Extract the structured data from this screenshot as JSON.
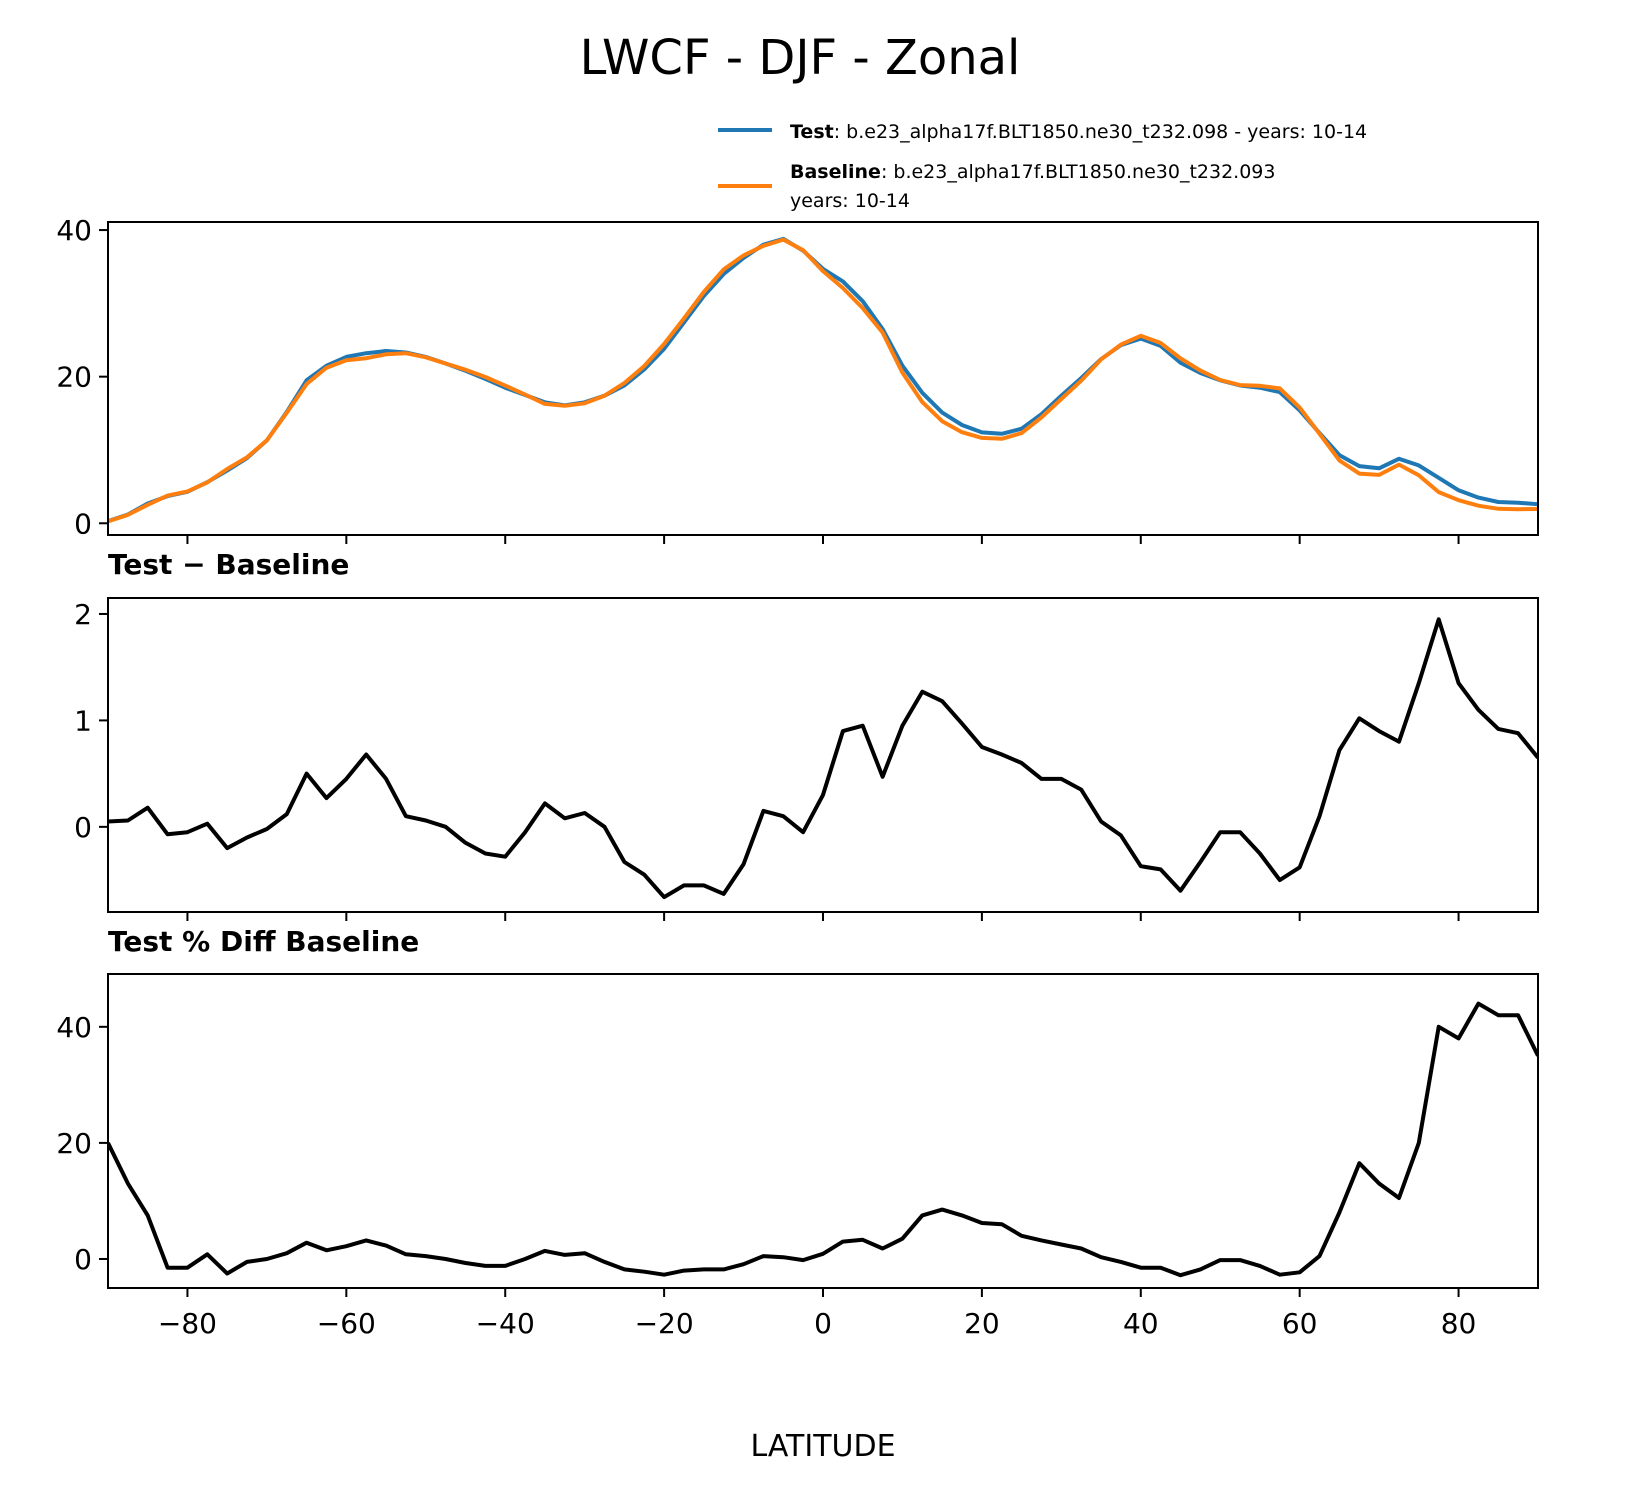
{
  "chart_data": [
    {
      "type": "line",
      "title": "LWCF - DJF - Zonal",
      "xlabel": "LATITUDE",
      "xlim": [
        -90,
        90
      ],
      "ylim": [
        -1.6,
        41.1
      ],
      "xticks": [
        "−80",
        "−60",
        "−40",
        "−20",
        "0",
        "20",
        "40",
        "60",
        "80"
      ],
      "yticks": [
        "0",
        "20",
        "40"
      ],
      "legend": {
        "placement": "top-right",
        "entries": [
          {
            "name": "Test",
            "text": ": b.e23_alpha17f.BLT1850.ne30_t232.098 - years: 10-14",
            "text2": ""
          },
          {
            "name": "Baseline",
            "text": ": b.e23_alpha17f.BLT1850.ne30_t232.093",
            "text2": "years: 10-14"
          }
        ]
      },
      "x": [
        -90,
        -87.5,
        -85,
        -82.5,
        -80,
        -77.5,
        -75,
        -72.5,
        -70,
        -67.5,
        -65,
        -62.5,
        -60,
        -57.5,
        -55,
        -52.5,
        -50,
        -47.5,
        -45,
        -42.5,
        -40,
        -37.5,
        -35,
        -32.5,
        -30,
        -27.5,
        -25,
        -22.5,
        -20,
        -17.5,
        -15,
        -12.5,
        -10,
        -7.5,
        -5,
        -2.5,
        0,
        2.5,
        5,
        7.5,
        10,
        12.5,
        15,
        17.5,
        20,
        22.5,
        25,
        27.5,
        30,
        32.5,
        35,
        37.5,
        40,
        42.5,
        45,
        47.5,
        50,
        52.5,
        55,
        57.5,
        60,
        62.5,
        65,
        67.5,
        70,
        72.5,
        75,
        77.5,
        80,
        82.5,
        85,
        87.5,
        90
      ],
      "series": [
        {
          "name": "Test",
          "color": "#1f77b4",
          "values": [
            0.3,
            1.2,
            2.7,
            3.7,
            4.3,
            5.6,
            7.2,
            8.9,
            11.3,
            15.2,
            19.5,
            21.5,
            22.7,
            23.2,
            23.5,
            23.3,
            22.7,
            21.8,
            20.8,
            19.7,
            18.5,
            17.5,
            16.5,
            16.1,
            16.5,
            17.4,
            18.8,
            21,
            23.8,
            27.4,
            31,
            34,
            36.2,
            38,
            38.8,
            37.2,
            34.7,
            33,
            30.3,
            26.5,
            21.5,
            17.8,
            15.1,
            13.4,
            12.4,
            12.2,
            12.9,
            14.9,
            17.4,
            19.8,
            22.4,
            24.3,
            25.2,
            24.2,
            21.9,
            20.5,
            19.5,
            18.8,
            18.5,
            17.9,
            15.4,
            12.3,
            9.3,
            7.8,
            7.5,
            8.8,
            7.9,
            6.2,
            4.5,
            3.5,
            2.9,
            2.8,
            2.6
          ]
        },
        {
          "name": "Baseline",
          "color": "#ff7f0e",
          "values": [
            0.25,
            1.14,
            2.52,
            3.77,
            4.35,
            5.57,
            7.4,
            9.0,
            11.32,
            15.08,
            19.0,
            21.23,
            22.25,
            22.52,
            23.05,
            23.2,
            22.64,
            21.8,
            20.95,
            19.95,
            18.78,
            17.55,
            16.28,
            16.02,
            16.37,
            17.4,
            19.13,
            21.45,
            24.46,
            27.95,
            31.55,
            34.63,
            36.55,
            37.85,
            38.7,
            37.25,
            34.4,
            32.1,
            29.35,
            26.03,
            20.55,
            16.53,
            13.92,
            12.43,
            11.65,
            11.52,
            12.3,
            14.45,
            16.95,
            19.45,
            22.35,
            24.38,
            25.57,
            24.6,
            22.5,
            20.83,
            19.55,
            18.85,
            18.75,
            18.4,
            15.78,
            12.2,
            8.58,
            6.78,
            6.6,
            8.0,
            6.55,
            4.25,
            3.15,
            2.4,
            1.98,
            1.92,
            1.95
          ]
        }
      ]
    },
    {
      "type": "line",
      "title": "Test − Baseline",
      "xlim": [
        -90,
        90
      ],
      "ylim": [
        -0.8,
        2.15
      ],
      "yticks": [
        "0",
        "1",
        "2"
      ],
      "x": [
        -90,
        -87.5,
        -85,
        -82.5,
        -80,
        -77.5,
        -75,
        -72.5,
        -70,
        -67.5,
        -65,
        -62.5,
        -60,
        -57.5,
        -55,
        -52.5,
        -50,
        -47.5,
        -45,
        -42.5,
        -40,
        -37.5,
        -35,
        -32.5,
        -30,
        -27.5,
        -25,
        -22.5,
        -20,
        -17.5,
        -15,
        -12.5,
        -10,
        -7.5,
        -5,
        -2.5,
        0,
        2.5,
        5,
        7.5,
        10,
        12.5,
        15,
        17.5,
        20,
        22.5,
        25,
        27.5,
        30,
        32.5,
        35,
        37.5,
        40,
        42.5,
        45,
        47.5,
        50,
        52.5,
        55,
        57.5,
        60,
        62.5,
        65,
        67.5,
        70,
        72.5,
        75,
        77.5,
        80,
        82.5,
        85,
        87.5,
        90
      ],
      "series": [
        {
          "name": "Test − Baseline",
          "color": "#000000",
          "values": [
            0.05,
            0.06,
            0.18,
            -0.07,
            -0.05,
            0.03,
            -0.2,
            -0.1,
            -0.02,
            0.12,
            0.5,
            0.27,
            0.45,
            0.68,
            0.45,
            0.1,
            0.06,
            0.0,
            -0.15,
            -0.25,
            -0.28,
            -0.05,
            0.22,
            0.08,
            0.13,
            0.0,
            -0.33,
            -0.45,
            -0.66,
            -0.55,
            -0.55,
            -0.63,
            -0.35,
            0.15,
            0.1,
            -0.05,
            0.3,
            0.9,
            0.95,
            0.47,
            0.95,
            1.27,
            1.18,
            0.97,
            0.75,
            0.68,
            0.6,
            0.45,
            0.45,
            0.35,
            0.05,
            -0.08,
            -0.37,
            -0.4,
            -0.6,
            -0.33,
            -0.05,
            -0.05,
            -0.25,
            -0.5,
            -0.38,
            0.1,
            0.72,
            1.02,
            0.9,
            0.8,
            1.35,
            1.95,
            1.35,
            1.1,
            0.92,
            0.88,
            0.65
          ]
        }
      ]
    },
    {
      "type": "line",
      "title": "Test % Diff Baseline",
      "xlim": [
        -90,
        90
      ],
      "ylim": [
        -5,
        49.1
      ],
      "yticks": [
        "0",
        "20",
        "40"
      ],
      "x": [
        -90,
        -87.5,
        -85,
        -82.5,
        -80,
        -77.5,
        -75,
        -72.5,
        -70,
        -67.5,
        -65,
        -62.5,
        -60,
        -57.5,
        -55,
        -52.5,
        -50,
        -47.5,
        -45,
        -42.5,
        -40,
        -37.5,
        -35,
        -32.5,
        -30,
        -27.5,
        -25,
        -22.5,
        -20,
        -17.5,
        -15,
        -12.5,
        -10,
        -7.5,
        -5,
        -2.5,
        0,
        2.5,
        5,
        7.5,
        10,
        12.5,
        15,
        17.5,
        20,
        22.5,
        25,
        27.5,
        30,
        32.5,
        35,
        37.5,
        40,
        42.5,
        45,
        47.5,
        50,
        52.5,
        55,
        57.5,
        60,
        62.5,
        65,
        67.5,
        70,
        72.5,
        75,
        77.5,
        80,
        82.5,
        85,
        87.5,
        90
      ],
      "series": [
        {
          "name": "Test % Diff Baseline",
          "color": "#000000",
          "values": [
            20,
            13,
            7.5,
            -1.5,
            -1.5,
            0.8,
            -2.5,
            -0.5,
            0,
            1,
            2.8,
            1.5,
            2.2,
            3.2,
            2.3,
            0.8,
            0.5,
            0,
            -0.7,
            -1.2,
            -1.2,
            0,
            1.4,
            0.7,
            1,
            -0.5,
            -1.8,
            -2.2,
            -2.7,
            -2,
            -1.8,
            -1.8,
            -0.9,
            0.5,
            0.3,
            -0.2,
            0.9,
            3,
            3.3,
            1.8,
            3.5,
            7.5,
            8.5,
            7.5,
            6.2,
            6,
            4,
            3.2,
            2.5,
            1.8,
            0.3,
            -0.5,
            -1.5,
            -1.5,
            -2.8,
            -1.8,
            -0.2,
            -0.2,
            -1.2,
            -2.7,
            -2.3,
            0.5,
            8,
            16.5,
            13,
            10.5,
            20,
            40,
            38,
            44,
            42,
            42,
            35
          ]
        }
      ]
    }
  ]
}
